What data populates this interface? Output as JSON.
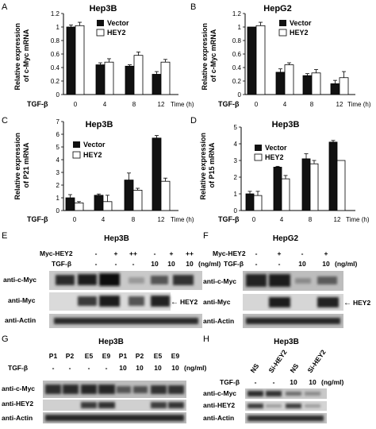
{
  "charts": [
    {
      "letter": "A",
      "title": "Hep3B",
      "ylabel_line1": "Relative expression",
      "ylabel_line2": "of c-Myc mRNA",
      "yticks": [
        "0",
        "0.2",
        "0.4",
        "0.6",
        "0.8",
        "1",
        "1.2"
      ],
      "xlabel_left": "TGF-β",
      "xticks": [
        "0",
        "4",
        "8",
        "12"
      ],
      "time_label": "Time (h)",
      "legend": [
        "Vector",
        "HEY2"
      ]
    },
    {
      "letter": "B",
      "title": "HepG2",
      "ylabel_line1": "Relative expression",
      "ylabel_line2": "of c-Myc mRNA",
      "yticks": [
        "0",
        "0.2",
        "0.4",
        "0.6",
        "0.8",
        "1",
        "1.2"
      ],
      "xlabel_left": "TGF-β",
      "xticks": [
        "0",
        "4",
        "8",
        "12"
      ],
      "time_label": "Time (h)",
      "legend": [
        "Vector",
        "HEY2"
      ]
    },
    {
      "letter": "C",
      "title": "Hep3B",
      "ylabel_line1": "Relative expression",
      "ylabel_line2": "of P21 mRNA",
      "yticks": [
        "0",
        "1",
        "2",
        "3",
        "4",
        "5",
        "6",
        "7"
      ],
      "xlabel_left": "TGF-β",
      "xticks": [
        "0",
        "4",
        "8",
        "12"
      ],
      "time_label": "Time (h)",
      "legend": [
        "Vector",
        "HEY2"
      ]
    },
    {
      "letter": "D",
      "title": "Hep3B",
      "ylabel_line1": "Relative expression",
      "ylabel_line2": "of P15 mRNA",
      "yticks": [
        "0",
        "1",
        "2",
        "3",
        "4",
        "5"
      ],
      "xlabel_left": "TGF-β",
      "xticks": [
        "0",
        "4",
        "8",
        "12"
      ],
      "time_label": "Time (h)",
      "legend": [
        "Vector",
        "HEY2"
      ]
    }
  ],
  "chart_data": [
    {
      "type": "bar",
      "title": "Hep3B",
      "xlabel": "TGF-β Time (h)",
      "ylabel": "Relative expression of c-Myc mRNA",
      "categories": [
        "0",
        "4",
        "8",
        "12"
      ],
      "ylim": [
        0,
        1.2
      ],
      "series": [
        {
          "name": "Vector",
          "values": [
            1.0,
            0.44,
            0.42,
            0.3
          ],
          "errors": [
            0.03,
            0.03,
            0.02,
            0.04
          ]
        },
        {
          "name": "HEY2",
          "values": [
            1.02,
            0.48,
            0.58,
            0.48
          ],
          "errors": [
            0.05,
            0.05,
            0.05,
            0.04
          ]
        }
      ]
    },
    {
      "type": "bar",
      "title": "HepG2",
      "xlabel": "TGF-β Time (h)",
      "ylabel": "Relative expression of c-Myc mRNA",
      "categories": [
        "0",
        "4",
        "8",
        "12"
      ],
      "ylim": [
        0,
        1.2
      ],
      "series": [
        {
          "name": "Vector",
          "values": [
            1.0,
            0.33,
            0.28,
            0.16
          ],
          "errors": [
            0.0,
            0.05,
            0.03,
            0.05
          ]
        },
        {
          "name": "HEY2",
          "values": [
            1.02,
            0.44,
            0.32,
            0.25
          ],
          "errors": [
            0.05,
            0.03,
            0.05,
            0.09
          ]
        }
      ]
    },
    {
      "type": "bar",
      "title": "Hep3B",
      "xlabel": "TGF-β Time (h)",
      "ylabel": "Relative expression of P21 mRNA",
      "categories": [
        "0",
        "4",
        "8",
        "12"
      ],
      "ylim": [
        0,
        7
      ],
      "series": [
        {
          "name": "Vector",
          "values": [
            1.0,
            1.2,
            2.4,
            5.7
          ],
          "errors": [
            0.25,
            0.1,
            0.55,
            0.2
          ]
        },
        {
          "name": "HEY2",
          "values": [
            0.6,
            0.7,
            1.6,
            2.3
          ],
          "errors": [
            0.1,
            0.5,
            0.15,
            0.25
          ]
        }
      ]
    },
    {
      "type": "bar",
      "title": "Hep3B",
      "xlabel": "TGF-β Time (h)",
      "ylabel": "Relative expression of P15 mRNA",
      "categories": [
        "0",
        "4",
        "8",
        "12"
      ],
      "ylim": [
        0,
        5
      ],
      "series": [
        {
          "name": "Vector",
          "values": [
            1.0,
            2.6,
            3.1,
            4.1
          ],
          "errors": [
            0.15,
            0.05,
            0.3,
            0.1
          ]
        },
        {
          "name": "HEY2",
          "values": [
            0.9,
            1.9,
            2.8,
            3.0
          ],
          "errors": [
            0.25,
            0.2,
            0.2,
            0.0
          ]
        }
      ]
    }
  ],
  "blots": {
    "E": {
      "letter": "E",
      "title": "Hep3B",
      "row1_label": "Myc-HEY2",
      "row1_values": [
        "-",
        "+",
        "++",
        "-",
        "+",
        "++"
      ],
      "row2_label": "TGF-β",
      "row2_values": [
        "-",
        "-",
        "-",
        "10",
        "10",
        "10"
      ],
      "unit": "(ng/ml)",
      "bands": [
        "anti-c-Myc",
        "anti-Myc",
        "anti-Actin"
      ],
      "arrow_label": "HEY2"
    },
    "F": {
      "letter": "F",
      "title": "HepG2",
      "row1_label": "Myc-HEY2",
      "row1_values": [
        "-",
        "+",
        "-",
        "+"
      ],
      "row2_label": "TGF-β",
      "row2_values": [
        "-",
        "-",
        "10",
        "10"
      ],
      "unit": "(ng/ml)",
      "bands": [
        "anti-c-Myc",
        "anti-Myc",
        "anti-Actin"
      ],
      "arrow_label": "HEY2"
    },
    "G": {
      "letter": "G",
      "title": "Hep3B",
      "lanes": [
        "P1",
        "P2",
        "E5",
        "E9",
        "P1",
        "P2",
        "E5",
        "E9"
      ],
      "row2_label": "TGF-β",
      "row2_values": [
        "-",
        "-",
        "-",
        "-",
        "10",
        "10",
        "10",
        "10"
      ],
      "unit": "(ng/ml)",
      "bands": [
        "anti-c-Myc",
        "anti-HEY2",
        "anti-Actin"
      ]
    },
    "H": {
      "letter": "H",
      "title": "Hep3B",
      "lanes": [
        "NS",
        "Si-HEY2",
        "NS",
        "Si-HEY2"
      ],
      "row2_label": "TGF-β",
      "row2_values": [
        "-",
        "-",
        "10",
        "10"
      ],
      "unit": "(ng/ml)",
      "bands": [
        "anti-c-Myc",
        "anti-HEY2",
        "anti-Actin"
      ]
    }
  }
}
